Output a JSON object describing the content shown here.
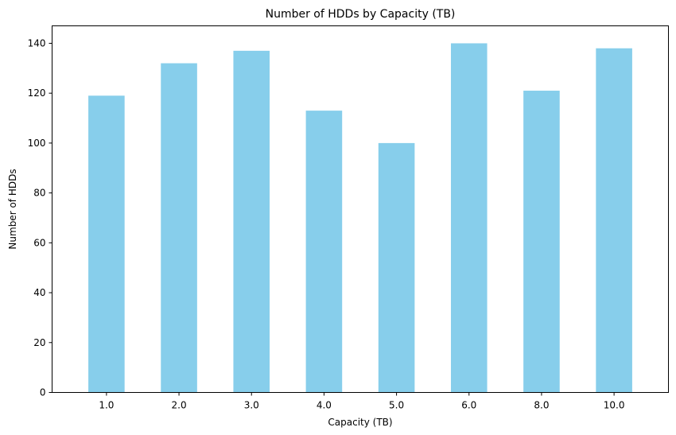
{
  "chart_data": {
    "type": "bar",
    "title": "Number of HDDs by Capacity (TB)",
    "xlabel": "Capacity (TB)",
    "ylabel": "Number of HDDs",
    "categories": [
      "1.0",
      "2.0",
      "3.0",
      "4.0",
      "5.0",
      "6.0",
      "8.0",
      "10.0"
    ],
    "values": [
      119,
      132,
      137,
      113,
      100,
      140,
      121,
      138
    ],
    "ylim": [
      0,
      147
    ],
    "yticks": [
      0,
      20,
      40,
      60,
      80,
      100,
      120,
      140
    ],
    "bar_color": "#87CEEB",
    "grid": false,
    "legend": "none"
  }
}
